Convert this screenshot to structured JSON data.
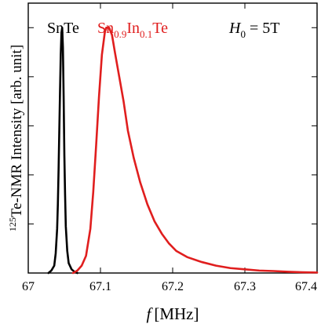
{
  "chart_data": {
    "type": "line",
    "xlabel_italic": "f",
    "xlabel_unit": "[MHz]",
    "ylabel_sup": "125",
    "ylabel_main": "Te-NMR Intensity [arb. unit]",
    "xlim": [
      67.0,
      67.4
    ],
    "ylim": [
      0,
      1.1
    ],
    "xticks": [
      67.0,
      67.1,
      67.2,
      67.3,
      67.4
    ],
    "xtick_labels": [
      "67",
      "67.1",
      "67.2",
      "67.3",
      "67.4"
    ],
    "yticks": [
      0.0,
      0.2,
      0.4,
      0.6,
      0.8,
      1.0
    ],
    "field_label": {
      "H": "H",
      "sub": "0",
      "value": " = 5T"
    },
    "series": [
      {
        "name": "SnTe",
        "color": "#000000",
        "x": [
          67.028,
          67.032,
          67.036,
          67.038,
          67.04,
          67.041,
          67.042,
          67.043,
          67.044,
          67.045,
          67.046,
          67.047,
          67.048,
          67.049,
          67.05,
          67.051,
          67.052,
          67.054,
          67.056,
          67.06,
          67.064,
          67.068
        ],
        "y": [
          0.0,
          0.01,
          0.03,
          0.08,
          0.18,
          0.28,
          0.42,
          0.58,
          0.74,
          0.89,
          0.98,
          1.0,
          0.92,
          0.72,
          0.48,
          0.32,
          0.19,
          0.09,
          0.04,
          0.015,
          0.005,
          0.0
        ]
      },
      {
        "name_parts": [
          "Sn",
          "0.9",
          "In",
          "0.1",
          "Te"
        ],
        "color": "#e01e1e",
        "x": [
          67.062,
          67.068,
          67.074,
          67.08,
          67.086,
          67.09,
          67.094,
          67.098,
          67.102,
          67.106,
          67.108,
          67.112,
          67.116,
          67.12,
          67.126,
          67.132,
          67.138,
          67.146,
          67.155,
          67.165,
          67.175,
          67.185,
          67.195,
          67.205,
          67.22,
          67.24,
          67.26,
          67.28,
          67.3,
          67.32,
          67.34,
          67.36,
          67.38,
          67.4
        ],
        "y": [
          0.0,
          0.01,
          0.03,
          0.07,
          0.18,
          0.33,
          0.52,
          0.72,
          0.89,
          0.98,
          1.0,
          1.0,
          0.97,
          0.9,
          0.8,
          0.7,
          0.58,
          0.47,
          0.37,
          0.28,
          0.21,
          0.16,
          0.12,
          0.09,
          0.065,
          0.045,
          0.03,
          0.02,
          0.015,
          0.01,
          0.008,
          0.005,
          0.003,
          0.002
        ]
      }
    ]
  }
}
